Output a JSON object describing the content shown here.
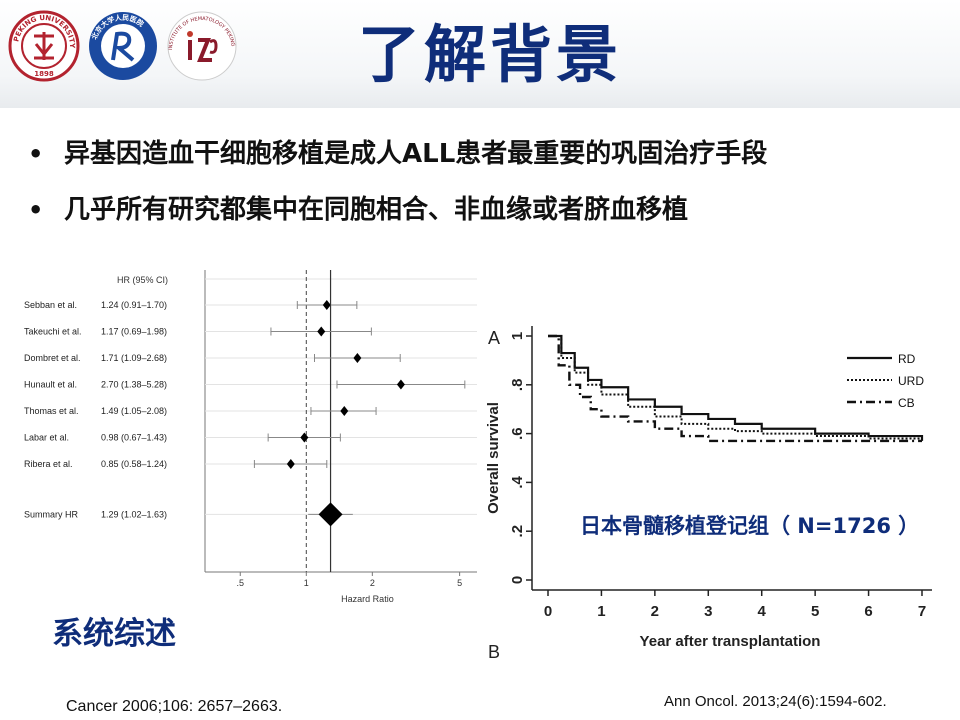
{
  "slide": {
    "title": "了解背景",
    "bullets": [
      "异基因造血干细胞移植是成人ALL患者最重要的巩固治疗手段",
      "几乎所有研究都集中在同胞相合、非血缘或者脐血移植"
    ],
    "review_label": "系统综述",
    "registry_label": "日本骨髓移植登记组（ N=1726 ）",
    "citation_left": "Cancer 2006;106: 2657–2663.",
    "citation_right": "Ann Oncol. 2013;24(6):1594-602."
  },
  "logos": {
    "logo1": {
      "text_top": "PEKING UNIVERSITY",
      "year": "1898",
      "color": "#b3232f"
    },
    "logo2": {
      "text": "北京大学人民医院",
      "color": "#1b4aa0"
    },
    "logo3": {
      "text": "INSTITUTE OF HEMATOLOGY PEKING UNIVERSITY",
      "color": "#8a1a2b"
    }
  },
  "chart_data": [
    {
      "type": "forest",
      "header": "HR (95% CI)",
      "rows": [
        {
          "study": "Sebban et al.",
          "ci_text": "1.24 (0.91–1.70)",
          "hr": 1.24,
          "lo": 0.91,
          "hi": 1.7
        },
        {
          "study": "Takeuchi et al.",
          "ci_text": "1.17 (0.69–1.98)",
          "hr": 1.17,
          "lo": 0.69,
          "hi": 1.98
        },
        {
          "study": "Dombret et al.",
          "ci_text": "1.71 (1.09–2.68)",
          "hr": 1.71,
          "lo": 1.09,
          "hi": 2.68
        },
        {
          "study": "Hunault et al.",
          "ci_text": "2.70 (1.38–5.28)",
          "hr": 2.7,
          "lo": 1.38,
          "hi": 5.28
        },
        {
          "study": "Thomas et al.",
          "ci_text": "1.49 (1.05–2.08)",
          "hr": 1.49,
          "lo": 1.05,
          "hi": 2.08
        },
        {
          "study": "Labar et al.",
          "ci_text": "0.98 (0.67–1.43)",
          "hr": 0.98,
          "lo": 0.67,
          "hi": 1.43
        },
        {
          "study": "Ribera et al.",
          "ci_text": "0.85 (0.58–1.24)",
          "hr": 0.85,
          "lo": 0.58,
          "hi": 1.24
        }
      ],
      "summary": {
        "study": "Summary HR",
        "ci_text": "1.29 (1.02–1.63)",
        "hr": 1.29,
        "lo": 1.02,
        "hi": 1.63
      },
      "xticks": [
        ".5",
        "1",
        "2",
        "5"
      ],
      "xscale": "log",
      "xlabel": "Hazard Ratio"
    },
    {
      "type": "line",
      "panel_label_top": "A",
      "panel_label_bottom": "B",
      "xlabel": "Year after transplantation",
      "ylabel": "Overall survival",
      "xlim": [
        0,
        7
      ],
      "ylim": [
        0,
        1
      ],
      "xticks": [
        "0",
        "1",
        "2",
        "3",
        "4",
        "5",
        "6",
        "7"
      ],
      "yticks": [
        "0",
        ".2",
        ".4",
        ".6",
        ".8",
        "1"
      ],
      "legend": "top-right",
      "series": [
        {
          "name": "RD",
          "dash": "solid",
          "x": [
            0,
            0.25,
            0.5,
            0.75,
            1,
            1.5,
            2,
            2.5,
            3,
            3.5,
            4,
            5,
            6,
            7
          ],
          "y": [
            1,
            0.93,
            0.87,
            0.82,
            0.79,
            0.74,
            0.71,
            0.68,
            0.66,
            0.64,
            0.62,
            0.6,
            0.59,
            0.57
          ]
        },
        {
          "name": "URD",
          "dash": "dotted",
          "x": [
            0,
            0.25,
            0.5,
            0.75,
            1,
            1.5,
            2,
            2.5,
            3,
            3.5,
            4,
            5,
            6,
            7
          ],
          "y": [
            1,
            0.91,
            0.85,
            0.8,
            0.76,
            0.71,
            0.67,
            0.64,
            0.62,
            0.61,
            0.6,
            0.59,
            0.58,
            0.57
          ]
        },
        {
          "name": "CB",
          "dash": "dashdot",
          "x": [
            0,
            0.2,
            0.4,
            0.6,
            0.8,
            1,
            1.5,
            2,
            2.5,
            3,
            4,
            5,
            6,
            7
          ],
          "y": [
            1,
            0.88,
            0.8,
            0.75,
            0.7,
            0.67,
            0.65,
            0.62,
            0.59,
            0.57,
            0.57,
            0.57,
            0.57,
            0.57
          ]
        }
      ]
    }
  ]
}
